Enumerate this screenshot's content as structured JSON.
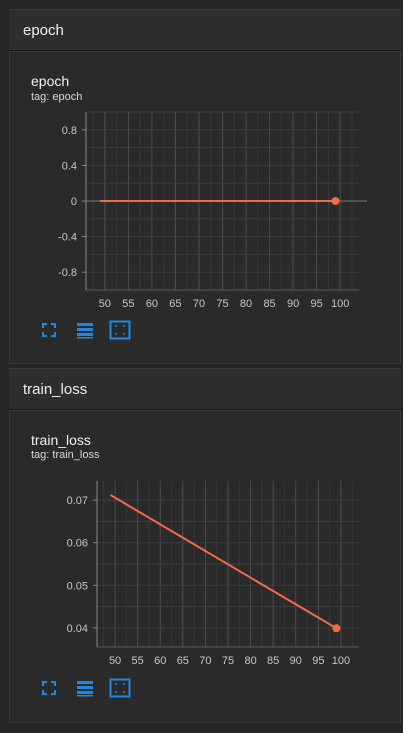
{
  "sections": [
    {
      "header": "epoch",
      "card": {
        "title": "epoch",
        "tag": "tag: epoch"
      }
    },
    {
      "header": "train_loss",
      "card": {
        "title": "train_loss",
        "tag": "tag: train_loss"
      }
    }
  ],
  "toolbar_icons": [
    "fullscreen-icon",
    "data-table-icon",
    "fit-domain-icon"
  ],
  "colors": {
    "series": "#f26b46",
    "accent": "#1e88e5",
    "grid": "#4a4a4a"
  },
  "chart_data": [
    {
      "type": "line",
      "title": "epoch",
      "subtitle": "tag: epoch",
      "x_ticks": [
        50,
        55,
        60,
        65,
        70,
        75,
        80,
        85,
        90,
        95,
        100
      ],
      "y_ticks": [
        0.8,
        0.4,
        0,
        -0.4,
        -0.8
      ],
      "y_tick_labels": [
        "0.8",
        "0.4",
        "0",
        "-0.4",
        "-0.8"
      ],
      "xlim": [
        46,
        104
      ],
      "ylim": [
        -1,
        1
      ],
      "grid": true,
      "series": [
        {
          "x": [
            49,
            99
          ],
          "y": [
            0,
            0
          ],
          "highlight_last": true
        }
      ]
    },
    {
      "type": "line",
      "title": "train_loss",
      "subtitle": "tag: train_loss",
      "x_ticks": [
        50,
        55,
        60,
        65,
        70,
        75,
        80,
        85,
        90,
        95,
        100
      ],
      "y_ticks": [
        0.07,
        0.06,
        0.05,
        0.04
      ],
      "y_tick_labels": [
        "0.07",
        "0.06",
        "0.05",
        "0.04"
      ],
      "xlim": [
        46,
        104
      ],
      "ylim": [
        0.0355,
        0.0745
      ],
      "grid": true,
      "series": [
        {
          "x": [
            49,
            99
          ],
          "y": [
            0.0712,
            0.0399
          ],
          "highlight_last": true
        }
      ]
    }
  ]
}
